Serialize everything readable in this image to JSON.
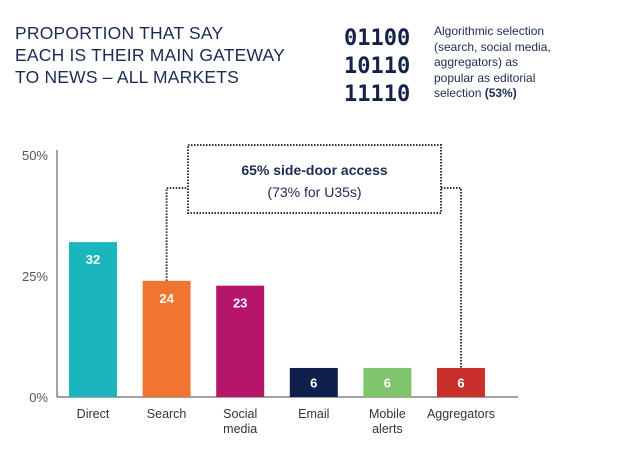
{
  "header": {
    "title_lines": [
      "PROPORTION THAT SAY",
      "EACH IS THEIR MAIN GATEWAY",
      "TO NEWS – ALL MARKETS"
    ],
    "binary_lines": [
      "01100",
      "10110",
      "11110"
    ],
    "note_lines": [
      "Algorithmic selection",
      "(search, social media,",
      "aggregators) as",
      "popular as editorial"
    ],
    "note_last_prefix": "selection ",
    "note_last_bold": "(53%)"
  },
  "chart_data": {
    "type": "bar",
    "title": "PROPORTION THAT SAY EACH IS THEIR MAIN GATEWAY TO NEWS – ALL MARKETS",
    "categories": [
      [
        "Direct"
      ],
      [
        "Search"
      ],
      [
        "Social",
        "media"
      ],
      [
        "Email"
      ],
      [
        "Mobile",
        "alerts"
      ],
      [
        "Aggregators"
      ]
    ],
    "values": [
      32,
      24,
      23,
      6,
      6,
      6
    ],
    "value_labels": [
      "32",
      "24",
      "23",
      "6",
      "6",
      "6"
    ],
    "colors": [
      "#1bb5bd",
      "#f07530",
      "#b5166a",
      "#0e1f4e",
      "#80c46c",
      "#c9302c"
    ],
    "ylim": [
      0,
      50
    ],
    "yticks": [
      0,
      25,
      50
    ],
    "ytick_labels": [
      "0%",
      "25%",
      "50%"
    ],
    "xlabel": "",
    "ylabel": "",
    "grid": false,
    "annotation": {
      "line1": "65% side-door access",
      "line2": "(73% for U35s)",
      "spans": [
        "Search",
        "Aggregators"
      ]
    }
  }
}
